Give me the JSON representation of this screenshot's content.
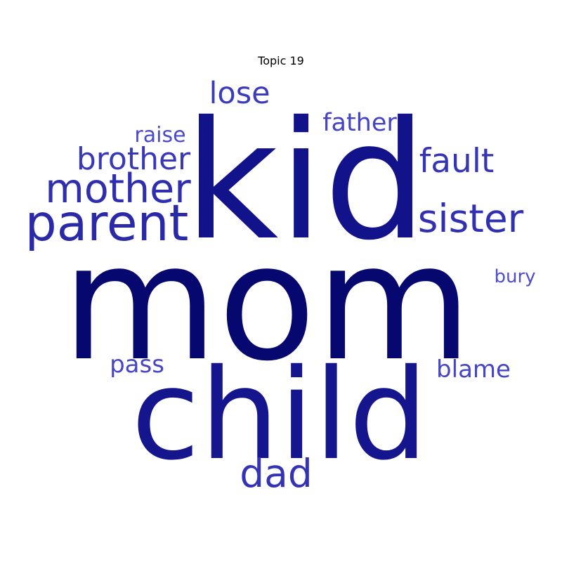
{
  "chart_data": {
    "type": "wordcloud",
    "title": "Topic 19",
    "words": [
      {
        "text": "mom",
        "color": "#070770"
      },
      {
        "text": "kid",
        "color": "#12128a"
      },
      {
        "text": "child",
        "color": "#15158e"
      },
      {
        "text": "parent",
        "color": "#2a2aa8"
      },
      {
        "text": "mother",
        "color": "#2e2eae"
      },
      {
        "text": "sister",
        "color": "#3030b0"
      },
      {
        "text": "dad",
        "color": "#3333b4"
      },
      {
        "text": "fault",
        "color": "#3535b6"
      },
      {
        "text": "brother",
        "color": "#3838b8"
      },
      {
        "text": "lose",
        "color": "#3b3bbc"
      },
      {
        "text": "father",
        "color": "#4343c4"
      },
      {
        "text": "blame",
        "color": "#4545c6"
      },
      {
        "text": "pass",
        "color": "#4545c6"
      },
      {
        "text": "raise",
        "color": "#4a4aca"
      },
      {
        "text": "bury",
        "color": "#4d4dce"
      }
    ]
  }
}
